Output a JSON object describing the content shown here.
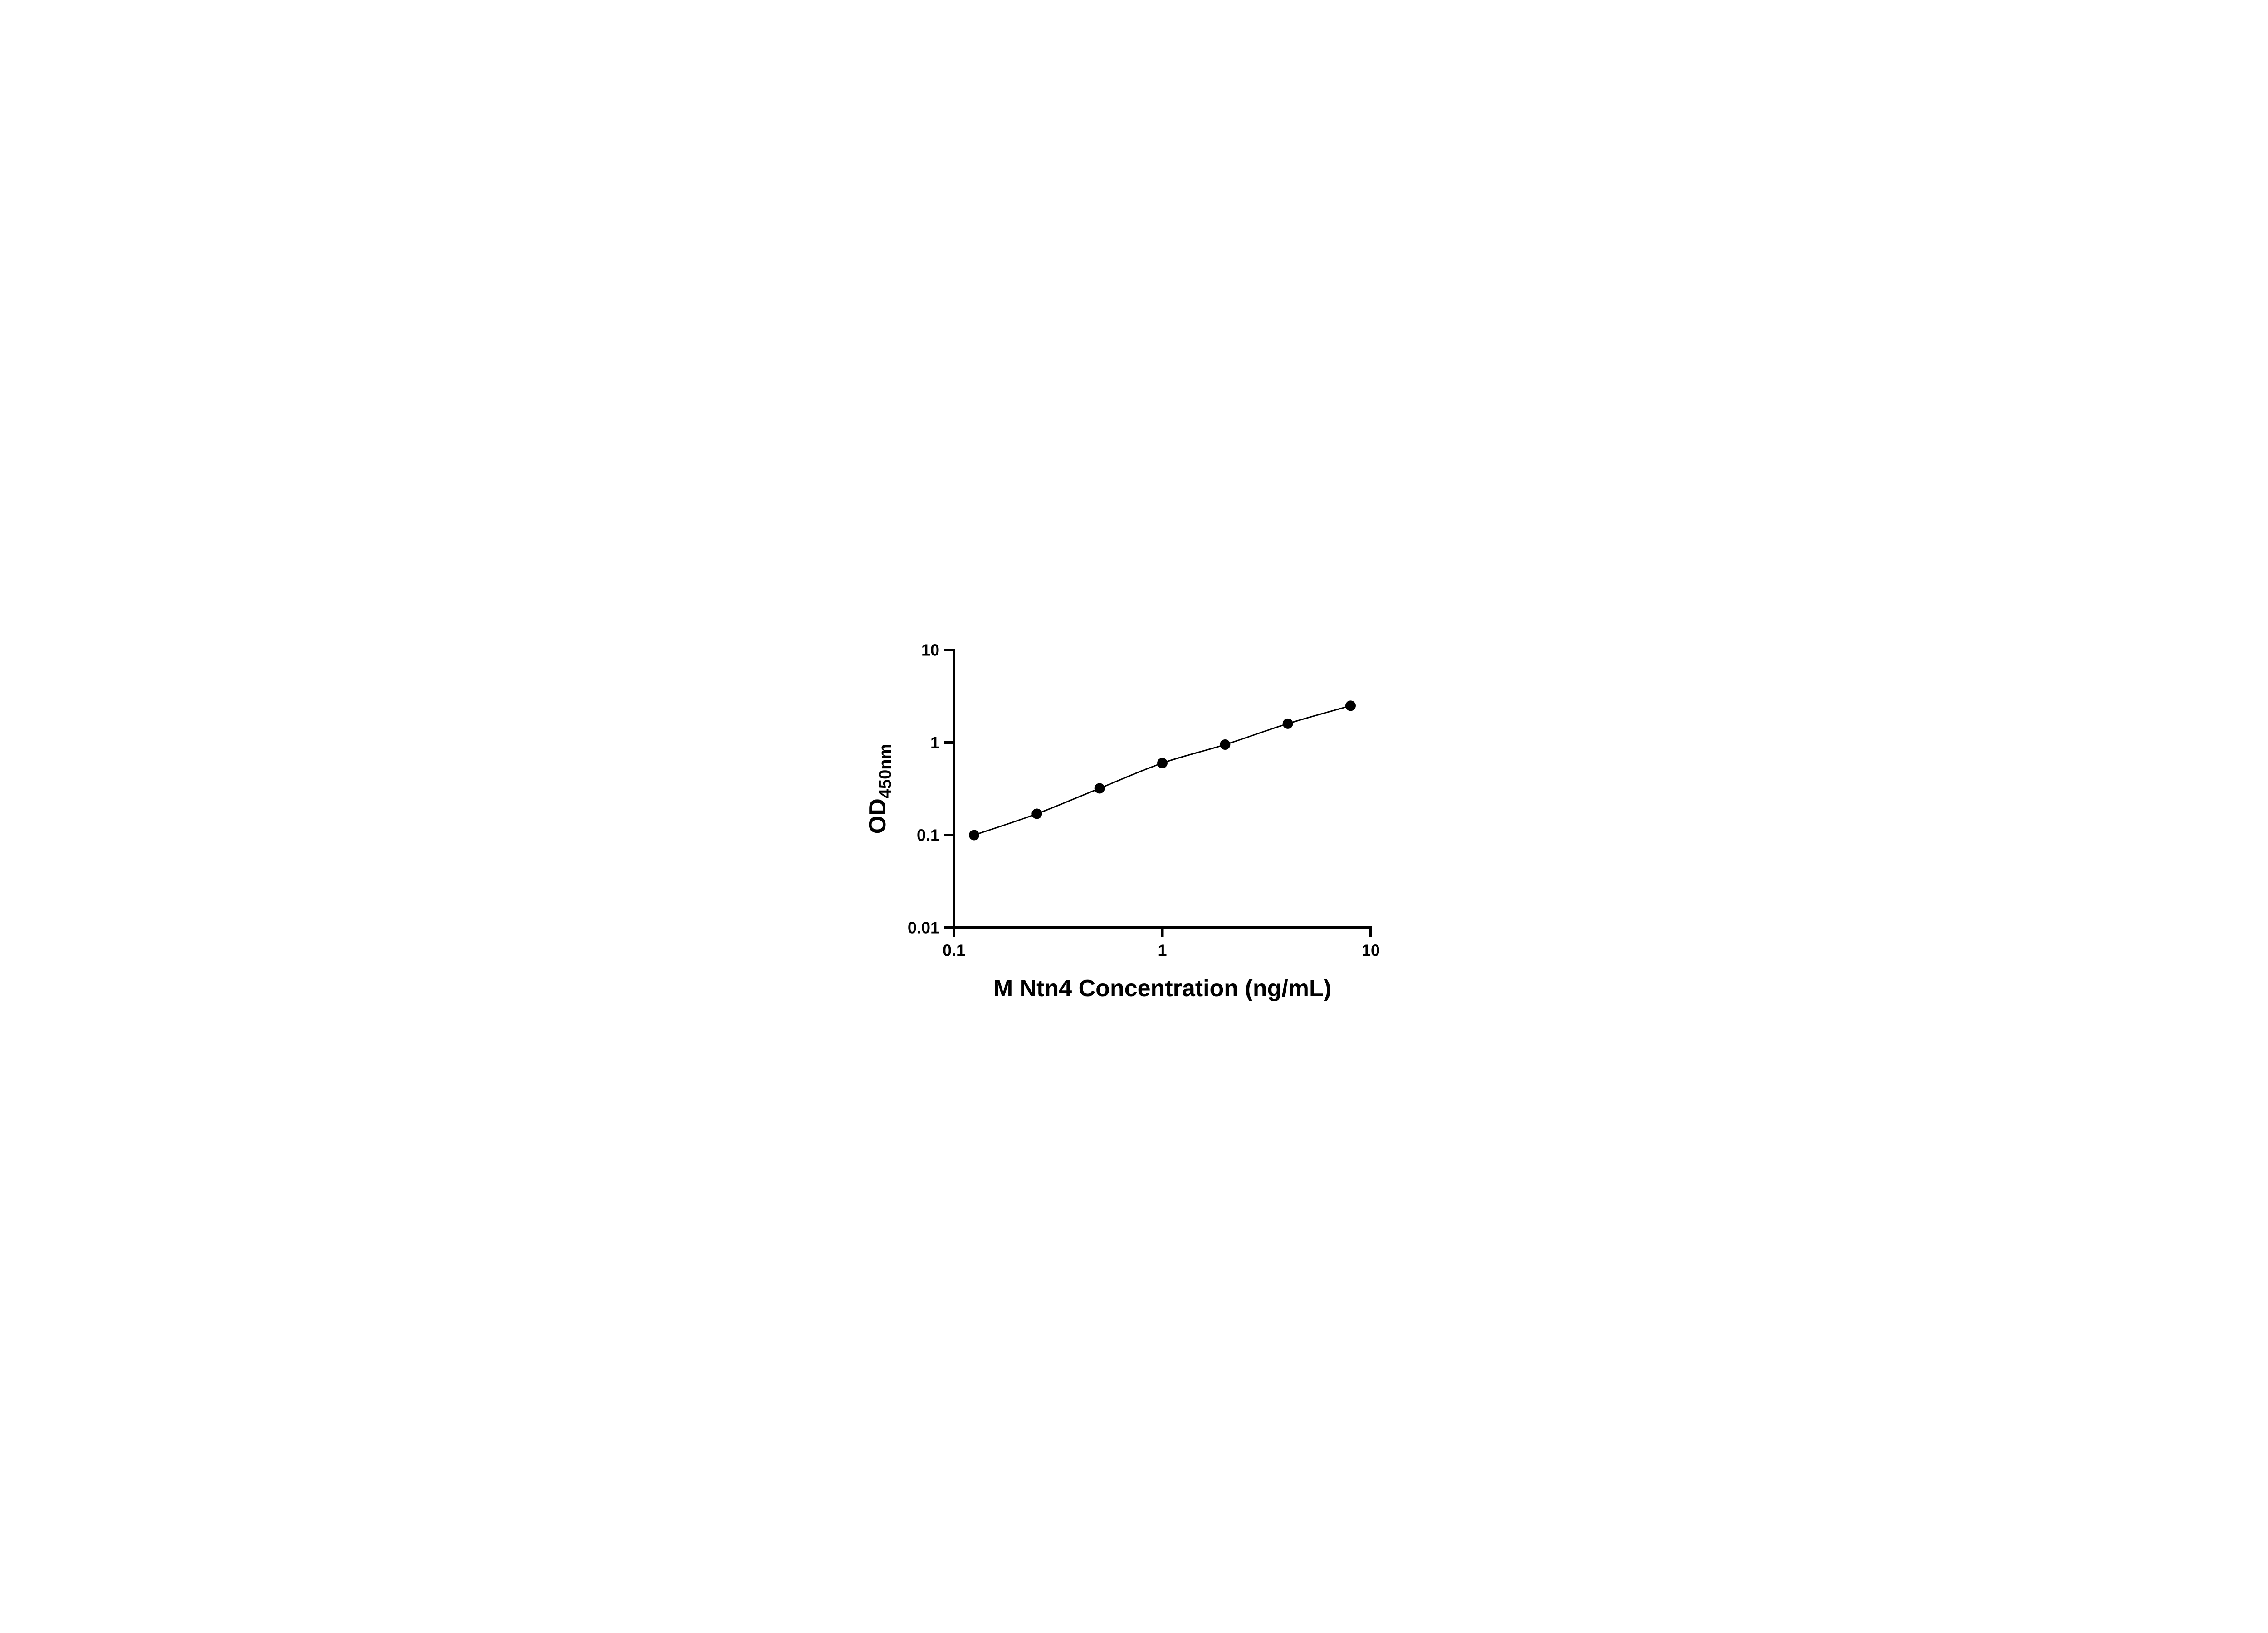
{
  "chart_data": {
    "type": "line",
    "title": "",
    "xlabel": "M Ntn4 Concentration (ng/mL)",
    "ylabel": "OD450nm",
    "ylabel_main": "OD",
    "ylabel_sub": "450nm",
    "x_scale": "log10",
    "y_scale": "log10",
    "xlim": [
      0.1,
      10
    ],
    "ylim": [
      0.01,
      10
    ],
    "x_tick_values": [
      0.1,
      1,
      10
    ],
    "x_tick_labels": [
      "0.1",
      "1",
      "10"
    ],
    "y_tick_values": [
      0.01,
      0.1,
      1,
      10
    ],
    "y_tick_labels": [
      "0.01",
      "0.1",
      "1",
      "10"
    ],
    "grid": false,
    "legend_position": "none",
    "axis_color": "#000000",
    "background": "#ffffff",
    "series": [
      {
        "marker": "filled-circle",
        "color": "#000000",
        "x": [
          0.125,
          0.25,
          0.5,
          1,
          2,
          4,
          8
        ],
        "y": [
          0.1,
          0.17,
          0.32,
          0.6,
          0.95,
          1.6,
          2.5
        ]
      }
    ]
  }
}
